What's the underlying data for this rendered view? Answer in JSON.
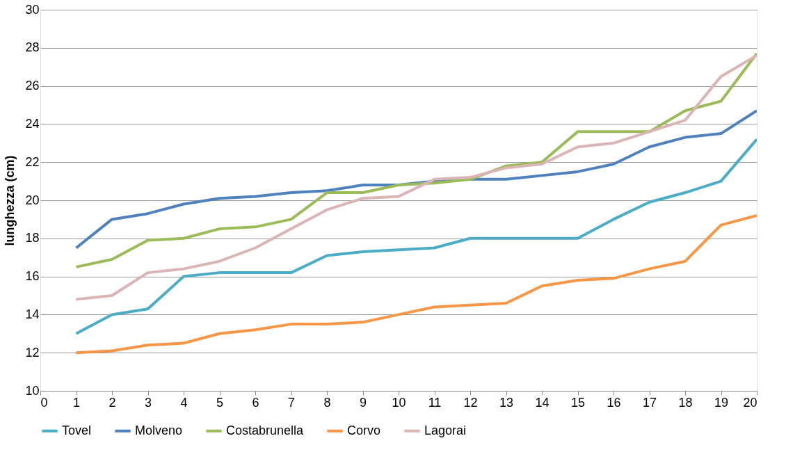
{
  "chart_data": {
    "type": "line",
    "ylabel": "lunghezza  (cm)",
    "x": [
      1,
      2,
      3,
      4,
      5,
      6,
      7,
      8,
      9,
      10,
      11,
      12,
      13,
      14,
      15,
      16,
      17,
      18,
      19,
      20
    ],
    "xlim": [
      0,
      20
    ],
    "xticks": [
      0,
      1,
      2,
      3,
      4,
      5,
      6,
      7,
      8,
      9,
      10,
      11,
      12,
      13,
      14,
      15,
      16,
      17,
      18,
      19,
      20
    ],
    "ylim": [
      10,
      30
    ],
    "yticks": [
      10,
      12,
      14,
      16,
      18,
      20,
      22,
      24,
      26,
      28,
      30
    ],
    "grid": "y",
    "legend": "bottom",
    "marker": "none",
    "line_style": "solid",
    "series": [
      {
        "name": "Tovel",
        "color": "#4bacc6",
        "values": [
          13,
          14,
          14.3,
          16,
          16.2,
          16.2,
          16.2,
          17.1,
          17.3,
          17.4,
          17.5,
          18,
          18,
          18,
          18,
          19,
          19.9,
          20.4,
          21,
          23.2
        ]
      },
      {
        "name": "Molveno",
        "color": "#4f81bd",
        "values": [
          17.5,
          19,
          19.3,
          19.8,
          20.1,
          20.2,
          20.4,
          20.5,
          20.8,
          20.8,
          21,
          21.1,
          21.1,
          21.3,
          21.5,
          21.9,
          22.8,
          23.3,
          23.5,
          24.7
        ]
      },
      {
        "name": "Costabrunella",
        "color": "#9bbb59",
        "values": [
          16.5,
          16.9,
          17.9,
          18,
          18.5,
          18.6,
          19,
          20.4,
          20.4,
          20.8,
          20.9,
          21.1,
          21.8,
          22,
          23.6,
          23.6,
          23.6,
          24.7,
          25.2,
          27.7
        ]
      },
      {
        "name": "Corvo",
        "color": "#f79646",
        "values": [
          12,
          12.1,
          12.4,
          12.5,
          13,
          13.2,
          13.5,
          13.5,
          13.6,
          14,
          14.4,
          14.5,
          14.6,
          15.5,
          15.8,
          15.9,
          16.4,
          16.8,
          18.7,
          19.2
        ]
      },
      {
        "name": "Lagorai",
        "color": "#dbb5b5",
        "values": [
          14.8,
          15,
          16.2,
          16.4,
          16.8,
          17.5,
          18.5,
          19.5,
          20.1,
          20.2,
          21.1,
          21.2,
          21.7,
          21.9,
          22.8,
          23,
          23.6,
          24.2,
          26.5,
          27.6
        ]
      }
    ]
  }
}
